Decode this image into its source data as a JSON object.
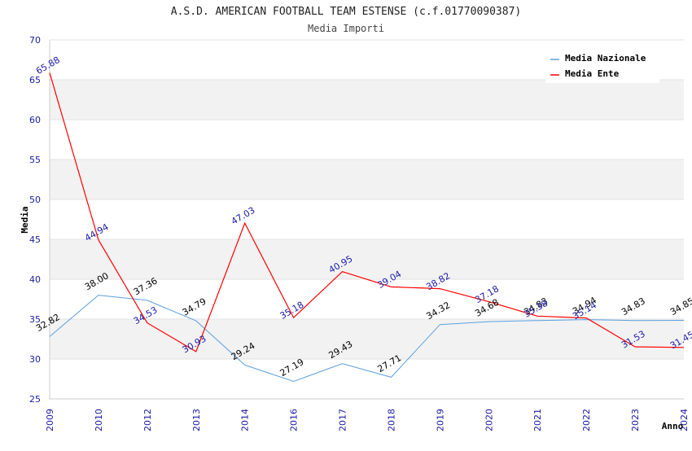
{
  "chart_data": {
    "type": "line",
    "title": "A.S.D. AMERICAN FOOTBALL TEAM ESTENSE (c.f.01770090387)",
    "subtitle": "Media Importi",
    "ylabel": "Media",
    "xlabel": "Anno",
    "ylim": [
      25,
      70
    ],
    "yticks": [
      25,
      30,
      35,
      40,
      45,
      50,
      55,
      60,
      65,
      70
    ],
    "categories": [
      "2009",
      "2010",
      "2012",
      "2013",
      "2014",
      "2016",
      "2017",
      "2018",
      "2019",
      "2020",
      "2021",
      "2022",
      "2023",
      "2024"
    ],
    "legend_position": "top-right",
    "series": [
      {
        "name": "Media Nazionale",
        "color": "#5aa0e0",
        "values": [
          32.82,
          38.0,
          37.36,
          34.79,
          29.24,
          27.19,
          29.43,
          27.71,
          34.32,
          34.68,
          34.83,
          34.94,
          34.83,
          34.85
        ],
        "labels": [
          "32.82",
          "38.00",
          "37.36",
          "34.79",
          "29.24",
          "27.19",
          "29.43",
          "27.71",
          "34.32",
          "34.68",
          "34.83",
          "34.94",
          "34.83",
          "34.85"
        ]
      },
      {
        "name": "Media Ente",
        "color": "#ff0000",
        "values": [
          65.88,
          44.94,
          34.53,
          30.93,
          47.03,
          35.18,
          40.95,
          39.04,
          38.82,
          37.18,
          35.38,
          35.14,
          31.53,
          31.45
        ],
        "labels": [
          "65.88",
          "44.94",
          "34.53",
          "30.93",
          "47.03",
          "35.18",
          "40.95",
          "39.04",
          "38.82",
          "37.18",
          "35.38",
          "35.14",
          "31.53",
          "31.45"
        ]
      }
    ]
  }
}
